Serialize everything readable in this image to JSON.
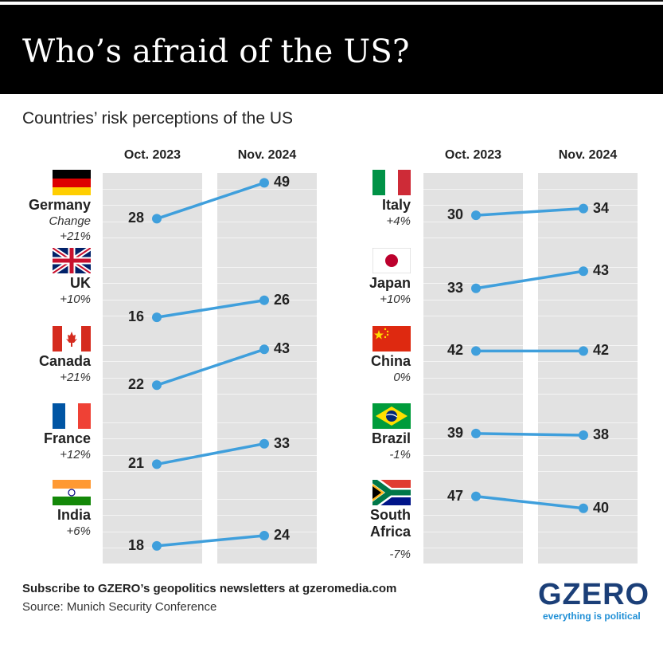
{
  "header": {
    "title": "Who’s afraid of the US?"
  },
  "subtitle": "Countries’ risk perceptions of the US",
  "columns": {
    "left_start": "Oct. 2023",
    "left_end": "Nov. 2024",
    "right_start": "Oct. 2023",
    "right_end": "Nov. 2024"
  },
  "change_label": "Change",
  "colors": {
    "line": "#3f9fdc",
    "band": "#e2e2e2",
    "header_bg": "#000000",
    "logo": "#1b3f78",
    "tagline": "#1f8fd6"
  },
  "chart_data": {
    "type": "line",
    "title": "Who’s afraid of the US?",
    "subtitle": "Countries’ risk perceptions of the US",
    "x": [
      "Oct. 2023",
      "Nov. 2024"
    ],
    "series": [
      {
        "name": "Germany",
        "values": [
          28,
          49
        ],
        "change": "+21%"
      },
      {
        "name": "UK",
        "values": [
          16,
          26
        ],
        "change": "+10%"
      },
      {
        "name": "Canada",
        "values": [
          22,
          43
        ],
        "change": "+21%"
      },
      {
        "name": "France",
        "values": [
          21,
          33
        ],
        "change": "+12%"
      },
      {
        "name": "India",
        "values": [
          18,
          24
        ],
        "change": "+6%"
      },
      {
        "name": "Italy",
        "values": [
          30,
          34
        ],
        "change": "+4%"
      },
      {
        "name": "Japan",
        "values": [
          33,
          43
        ],
        "change": "+10%"
      },
      {
        "name": "China",
        "values": [
          42,
          42
        ],
        "change": "0%"
      },
      {
        "name": "Brazil",
        "values": [
          39,
          38
        ],
        "change": "-1%"
      },
      {
        "name": "South Africa",
        "values": [
          47,
          40
        ],
        "change": "-7%"
      }
    ]
  },
  "footer": {
    "subscribe": "Subscribe to GZERO’s geopolitics newsletters at gzeromedia.com",
    "source": "Source: Munich Security Conference"
  },
  "logo": {
    "name": "GZERO",
    "tagline": "everything is political"
  },
  "flags": [
    "germany-flag-icon",
    "uk-flag-icon",
    "canada-flag-icon",
    "france-flag-icon",
    "india-flag-icon",
    "italy-flag-icon",
    "japan-flag-icon",
    "china-flag-icon",
    "brazil-flag-icon",
    "south-africa-flag-icon"
  ]
}
